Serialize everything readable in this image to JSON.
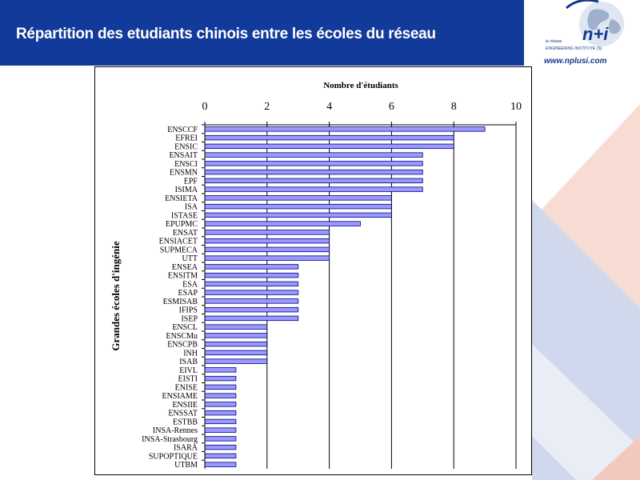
{
  "header": {
    "title": "Répartition des etudiants chinois entre les écoles du réseau"
  },
  "logo": {
    "brand": "n+i",
    "small_line1": "le réseau",
    "small_line2": "ENGINEERING INSTITUTE (S)",
    "url": "www.nplusi.com"
  },
  "colors": {
    "header": "#113a9a",
    "bar_fill": "#9999ff",
    "bar_stroke": "#000080",
    "decor_pink": "#f8dcd3",
    "decor_blue": "#cfd8ec"
  },
  "chart_data": {
    "type": "bar",
    "orientation": "horizontal",
    "xaxis_position": "top",
    "title": "Nombre d'étudiants",
    "ylabel": "Grandes écoles d'ingénie",
    "xlim": [
      0,
      10
    ],
    "xticks": [
      0,
      2,
      4,
      6,
      8,
      10
    ],
    "grid": "vertical major gridlines",
    "legend": "none",
    "categories": [
      "ENSCCF",
      "EFREI",
      "ENSIC",
      "ENSAIT",
      "ENSCI",
      "ENSMN",
      "EPF",
      "ISIMA",
      "ENSIETA",
      "ISA",
      "ISTASE",
      "EPUPMC",
      "ENSAT",
      "ENSIACET",
      "SUPMECA",
      "UTT",
      "ENSEA",
      "ENSITM",
      "ESA",
      "ESAP",
      "ESMISAB",
      "IFIPS",
      "ISEP",
      "ENSCL",
      "ENSCMu",
      "ENSCPB",
      "INH",
      "ISAB",
      "EIVL",
      "EISTI",
      "ENISE",
      "ENSIAME",
      "ENSIIE",
      "ENSSAT",
      "ESTBB",
      "INSA-Rennes",
      "INSA-Strasbourg",
      "ISARA",
      "SUPOPTIQUE",
      "UTBM"
    ],
    "values": [
      9,
      8,
      8,
      7,
      7,
      7,
      7,
      7,
      6,
      6,
      6,
      5,
      4,
      4,
      4,
      4,
      3,
      3,
      3,
      3,
      3,
      3,
      3,
      2,
      2,
      2,
      2,
      2,
      1,
      1,
      1,
      1,
      1,
      1,
      1,
      1,
      1,
      1,
      1,
      1
    ]
  }
}
